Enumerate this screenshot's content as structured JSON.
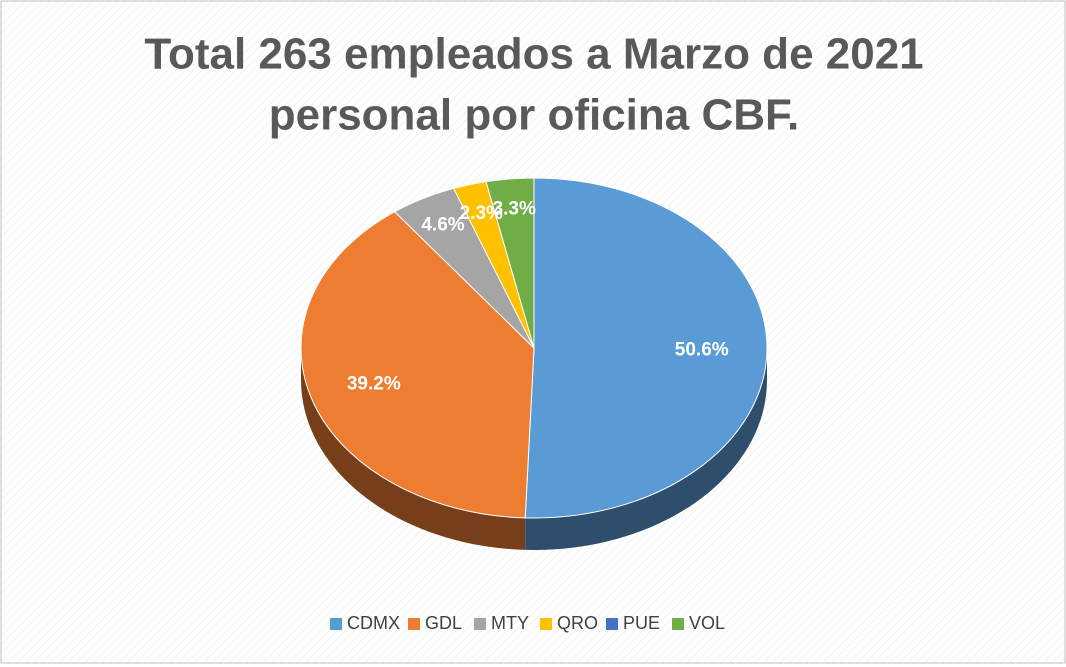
{
  "chart_data": {
    "type": "pie",
    "title": [
      "Total 263 empleados a Marzo de 2021",
      "personal por oficina CBF."
    ],
    "categories": [
      "CDMX",
      "GDL",
      "MTY",
      "QRO",
      "PUE",
      "VOL"
    ],
    "values": [
      50.6,
      39.2,
      4.6,
      2.3,
      0,
      3.3
    ],
    "value_labels": [
      "50.6%",
      "39.2%",
      "4.6%",
      "2.3%",
      null,
      "3.3%"
    ],
    "colors": [
      "#5b9bd5",
      "#ed7d31",
      "#a5a5a5",
      "#ffc000",
      "#4472c4",
      "#70ad47"
    ],
    "legend": "bottom"
  }
}
